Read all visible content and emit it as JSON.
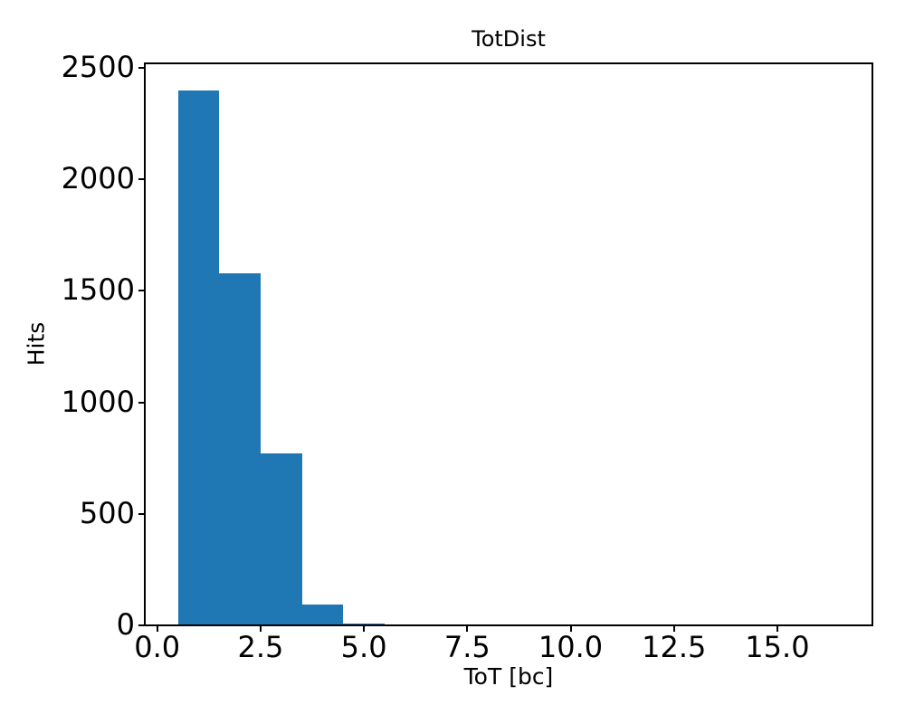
{
  "figure": {
    "background": "#ffffff",
    "text_color": "#000000"
  },
  "chart_data": {
    "type": "bar",
    "subtype": "histogram",
    "title": "TotDist",
    "xlabel": "ToT [bc]",
    "ylabel": "Hits",
    "bar_color": "#1f77b4",
    "axis_color": "#000000",
    "grid": false,
    "legend_position": "none",
    "bin_edges": [
      0.5,
      1.5,
      2.5,
      3.5,
      4.5,
      5.5,
      6.5,
      7.5,
      8.5,
      9.5,
      10.5,
      11.5,
      12.5,
      13.5,
      14.5,
      15.5,
      16.5
    ],
    "counts": [
      2400,
      1580,
      770,
      95,
      10,
      0,
      0,
      0,
      0,
      0,
      0,
      0,
      0,
      0,
      0,
      0
    ],
    "xlim": [
      -0.3,
      17.3
    ],
    "ylim": [
      0,
      2520
    ],
    "x_tick_values": [
      0,
      2.5,
      5,
      7.5,
      10,
      12.5,
      15
    ],
    "x_tick_labels": [
      "0.0",
      "2.5",
      "5.0",
      "7.5",
      "10.0",
      "12.5",
      "15.0"
    ],
    "y_tick_values": [
      0,
      500,
      1000,
      1500,
      2000,
      2500
    ],
    "y_tick_labels": [
      "0",
      "500",
      "1000",
      "1500",
      "2000",
      "2500"
    ]
  }
}
